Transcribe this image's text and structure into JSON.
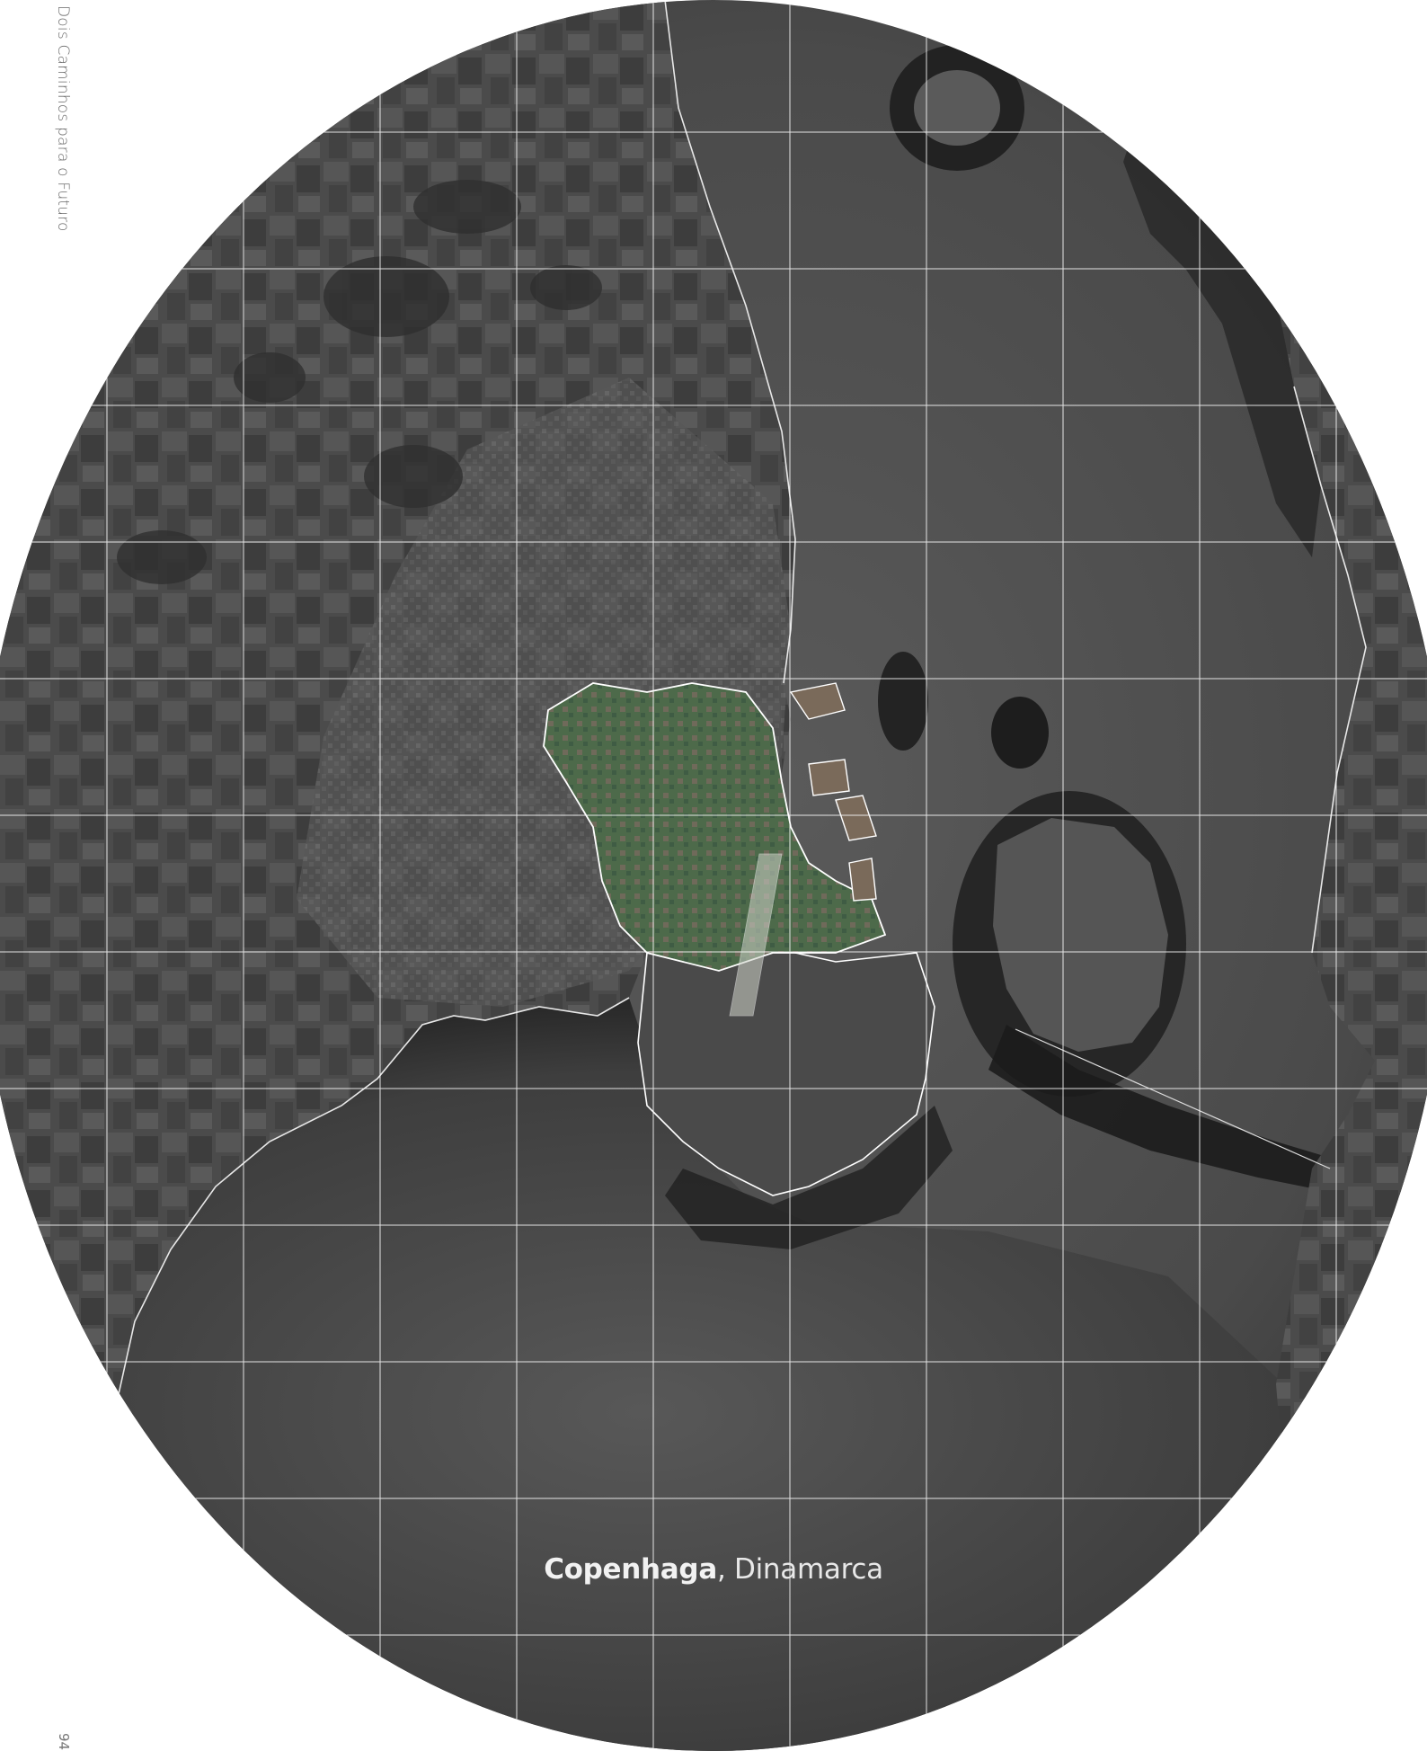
{
  "running_title": "Dois Caminhos para o Futuro",
  "page_number": "94",
  "caption": {
    "city": "Copenhaga",
    "separator": ", ",
    "country": "Dinamarca"
  },
  "colors": {
    "land": "#4a4a4a",
    "water": "#505050",
    "deep_water": "#262626",
    "highlight": "#4e6b4c",
    "grid": "#ffffff",
    "boundary": "#ffffff"
  }
}
